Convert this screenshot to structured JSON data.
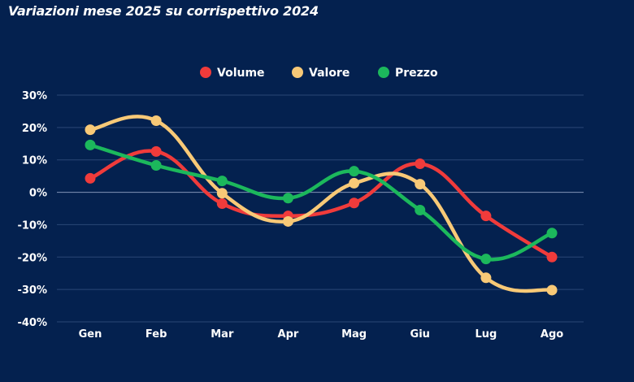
{
  "chart_data": {
    "type": "line",
    "title": "Variazioni mese 2025 su corrispettivo 2024",
    "xlabel": "",
    "ylabel": "",
    "categories": [
      "Gen",
      "Feb",
      "Mar",
      "Apr",
      "Mag",
      "Giu",
      "Lug",
      "Ago"
    ],
    "ylim": [
      -40,
      30
    ],
    "yticks": [
      "30%",
      "20%",
      "10%",
      "0%",
      "-10%",
      "-20%",
      "-30%",
      "-40%"
    ],
    "ytick_values": [
      30,
      20,
      10,
      0,
      -10,
      -20,
      -30,
      -40
    ],
    "grid": true,
    "smooth": true,
    "legend_position": "top-center",
    "series": [
      {
        "name": "Volume",
        "color": "#f03b3b",
        "values": [
          4.3,
          12.6,
          -3.5,
          -7.3,
          -3.3,
          8.8,
          -7.3,
          -20.0
        ]
      },
      {
        "name": "Valore",
        "color": "#f8c977",
        "values": [
          19.3,
          22.1,
          -0.3,
          -9.0,
          2.8,
          2.5,
          -26.4,
          -30.2
        ]
      },
      {
        "name": "Prezzo",
        "color": "#1cb85c",
        "values": [
          14.6,
          8.3,
          3.5,
          -1.8,
          6.5,
          -5.5,
          -20.6,
          -12.6
        ]
      }
    ]
  }
}
